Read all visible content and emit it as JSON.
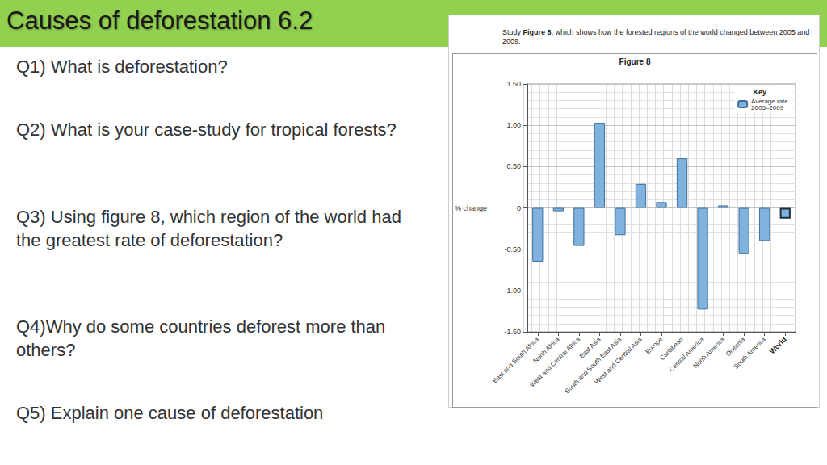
{
  "header": {
    "title": "Causes of deforestation 6.2"
  },
  "questions": [
    "Q1) What is deforestation?",
    "Q2) What is your case-study for tropical forests?",
    "Q3) Using figure 8, which region of the world had the greatest rate of deforestation?",
    "Q4)Why do some countries deforest more than others?",
    "Q5) Explain one cause of deforestation"
  ],
  "figure": {
    "instruction": "Study Figure 8, which shows how the forested regions of the world changed between 2005 and 2009.",
    "caption": "Figure 8"
  },
  "chart_data": {
    "type": "bar",
    "ylabel": "% change",
    "legend_title": "Key",
    "categories": [
      "East and South Africa",
      "North Africa",
      "West and Central Africa",
      "East Asia",
      "South and South East Asia",
      "West and Central Asia",
      "Europe",
      "Caribbean",
      "Central America",
      "North America",
      "Oceania",
      "South America",
      "World"
    ],
    "series": [
      {
        "name": "Average rate 2005–2009",
        "color": "#7fb2dc",
        "values": [
          -0.65,
          -0.04,
          -0.46,
          1.03,
          -0.33,
          0.29,
          0.07,
          0.6,
          -1.23,
          0.03,
          -0.56,
          -0.4,
          -0.13
        ]
      }
    ],
    "ylim": [
      -1.5,
      1.5
    ],
    "yticks": [
      {
        "value": -1.5,
        "label": "-1.50"
      },
      {
        "value": -1.0,
        "label": "-1.00"
      },
      {
        "value": -0.5,
        "label": "-0.50"
      },
      0,
      {
        "value": 0.5,
        "label": "0.50"
      },
      {
        "value": 1.0,
        "label": "1.00"
      },
      {
        "value": 1.5,
        "label": "1.50"
      }
    ],
    "grid": true,
    "legend": "upper right"
  }
}
